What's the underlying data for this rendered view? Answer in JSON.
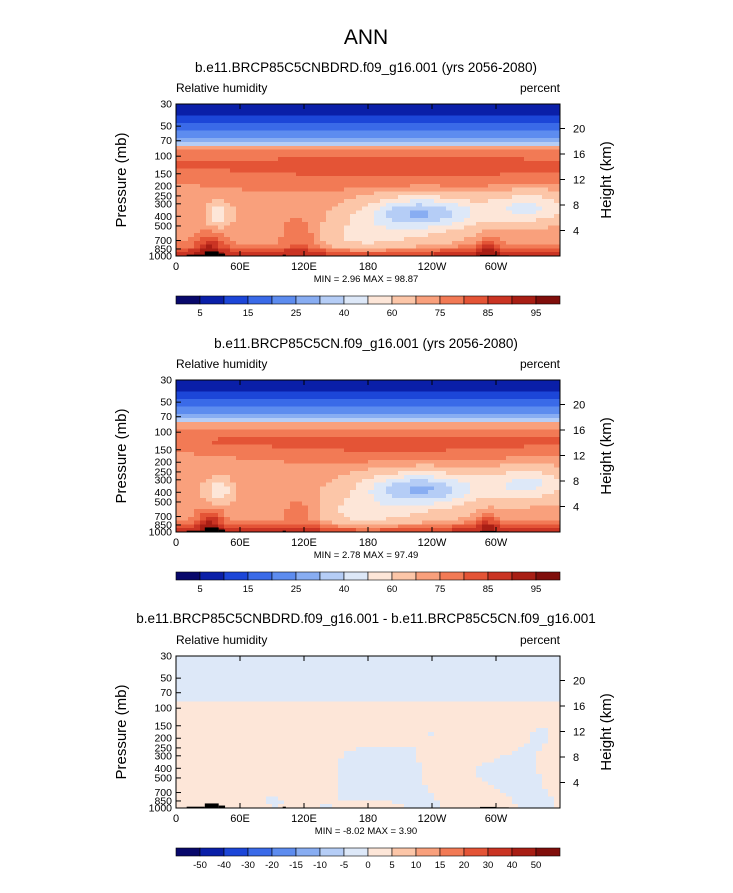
{
  "page_title": "ANN",
  "palettes": {
    "abs": [
      "#08086b",
      "#0a1fa8",
      "#1c46d8",
      "#3a6ae8",
      "#5d8cef",
      "#88adf2",
      "#b5cdf6",
      "#dde8f8",
      "#fde6d8",
      "#fcc6a8",
      "#f9a07c",
      "#f27a55",
      "#e45436",
      "#ca3423",
      "#a81e14",
      "#800e0b"
    ],
    "diff": [
      "#08086b",
      "#0a1fa8",
      "#1c46d8",
      "#3a6ae8",
      "#5d8cef",
      "#88adf2",
      "#b5cdf6",
      "#dde8f8",
      "#fde6d8",
      "#fcc6a8",
      "#f9a07c",
      "#f27a55",
      "#e45436",
      "#ca3423",
      "#a81e14",
      "#800e0b"
    ]
  },
  "chart_data": [
    {
      "type": "heatmap",
      "title": "b.e11.BRCP85C5CNBDRD.f09_g16.001 (yrs 2056-2080)",
      "left_label": "Relative humidity",
      "right_label": "percent",
      "ylabel": "Pressure (mb)",
      "y2label": "Height (km)",
      "x_ticks": [
        "0",
        "60E",
        "120E",
        "180",
        "120W",
        "60W"
      ],
      "x_tick_lon": [
        0,
        60,
        120,
        180,
        240,
        300
      ],
      "xlim": [
        0,
        360
      ],
      "p_ticks": [
        30,
        50,
        70,
        100,
        150,
        200,
        250,
        300,
        400,
        500,
        700,
        850,
        1000
      ],
      "p_tick_labels": [
        "30",
        "50",
        "70",
        "100",
        "150",
        "200",
        "250",
        "300",
        "400",
        "500",
        "700",
        "850",
        "1000"
      ],
      "ylim_p": [
        1000,
        30
      ],
      "height_ticks": [
        4,
        8,
        12,
        16,
        20
      ],
      "height_tick_labels": [
        "4",
        "8",
        "12",
        "16",
        "20"
      ],
      "min": "2.96",
      "max": "98.87",
      "stats_text": "MIN =   2.96  MAX =  98.87",
      "palette": "abs",
      "colorbar_labels": [
        "5",
        "15",
        "25",
        "40",
        "60",
        "75",
        "85",
        "95"
      ],
      "field": "abs",
      "scale": 1.0
    },
    {
      "type": "heatmap",
      "title": "b.e11.BRCP85C5CN.f09_g16.001 (yrs 2056-2080)",
      "left_label": "Relative humidity",
      "right_label": "percent",
      "ylabel": "Pressure (mb)",
      "y2label": "Height (km)",
      "x_ticks": [
        "0",
        "60E",
        "120E",
        "180",
        "120W",
        "60W"
      ],
      "x_tick_lon": [
        0,
        60,
        120,
        180,
        240,
        300
      ],
      "xlim": [
        0,
        360
      ],
      "p_ticks": [
        30,
        50,
        70,
        100,
        150,
        200,
        250,
        300,
        400,
        500,
        700,
        850,
        1000
      ],
      "p_tick_labels": [
        "30",
        "50",
        "70",
        "100",
        "150",
        "200",
        "250",
        "300",
        "400",
        "500",
        "700",
        "850",
        "1000"
      ],
      "ylim_p": [
        1000,
        30
      ],
      "height_ticks": [
        4,
        8,
        12,
        16,
        20
      ],
      "height_tick_labels": [
        "4",
        "8",
        "12",
        "16",
        "20"
      ],
      "min": "2.78",
      "max": "97.49",
      "stats_text": "MIN =   2.78  MAX =  97.49",
      "palette": "abs",
      "colorbar_labels": [
        "5",
        "15",
        "25",
        "40",
        "60",
        "75",
        "85",
        "95"
      ],
      "field": "abs",
      "scale": 0.985
    },
    {
      "type": "heatmap",
      "title": "b.e11.BRCP85C5CNBDRD.f09_g16.001 - b.e11.BRCP85C5CN.f09_g16.001",
      "left_label": "Relative humidity",
      "right_label": "percent",
      "ylabel": "Pressure (mb)",
      "y2label": "Height (km)",
      "x_ticks": [
        "0",
        "60E",
        "120E",
        "180",
        "120W",
        "60W"
      ],
      "x_tick_lon": [
        0,
        60,
        120,
        180,
        240,
        300
      ],
      "xlim": [
        0,
        360
      ],
      "p_ticks": [
        30,
        50,
        70,
        100,
        150,
        200,
        250,
        300,
        400,
        500,
        700,
        850,
        1000
      ],
      "p_tick_labels": [
        "30",
        "50",
        "70",
        "100",
        "150",
        "200",
        "250",
        "300",
        "400",
        "500",
        "700",
        "850",
        "1000"
      ],
      "ylim_p": [
        1000,
        30
      ],
      "height_ticks": [
        4,
        8,
        12,
        16,
        20
      ],
      "height_tick_labels": [
        "4",
        "8",
        "12",
        "16",
        "20"
      ],
      "min": "-8.02",
      "max": "3.90",
      "stats_text": "MIN =  -8.02  MAX =   3.90",
      "palette": "diff",
      "colorbar_labels": [
        "-50",
        "-40",
        "-30",
        "-20",
        "-15",
        "-10",
        "-5",
        "0",
        "5",
        "10",
        "15",
        "20",
        "30",
        "40",
        "50"
      ],
      "field": "diff",
      "scale": 1.0
    }
  ]
}
